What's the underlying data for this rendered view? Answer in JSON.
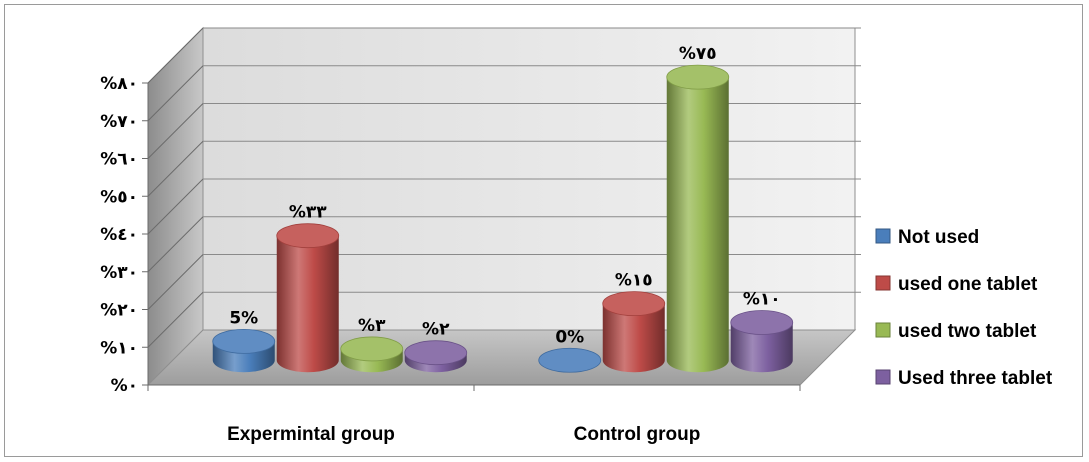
{
  "chart_data": {
    "type": "bar",
    "style": "3d-cylinder",
    "categories": [
      "Expermintal group",
      "Control group"
    ],
    "y_tick_labels": [
      "%٠",
      "%١٠",
      "%٢٠",
      "%٣٠",
      "%٤٠",
      "%٥٠",
      "%٦٠",
      "%٧٠",
      "%٨٠"
    ],
    "ylim": [
      0,
      80
    ],
    "grid": true,
    "legend_position": "right",
    "series": [
      {
        "name": "Not used",
        "color": "#4a7ebb",
        "values": [
          5,
          0
        ],
        "labels": [
          "5%",
          "0%"
        ]
      },
      {
        "name": "used one tablet",
        "color": "#be4b48",
        "values": [
          33,
          15
        ],
        "labels": [
          "%٣٣",
          "%١٥"
        ]
      },
      {
        "name": "used two tablet",
        "color": "#98b954",
        "values": [
          3,
          75
        ],
        "labels": [
          "%٣",
          "%٧٥"
        ]
      },
      {
        "name": "Used three tablet",
        "color": "#7d60a0",
        "values": [
          2,
          10
        ],
        "labels": [
          "%٢",
          "%١٠"
        ]
      }
    ]
  }
}
